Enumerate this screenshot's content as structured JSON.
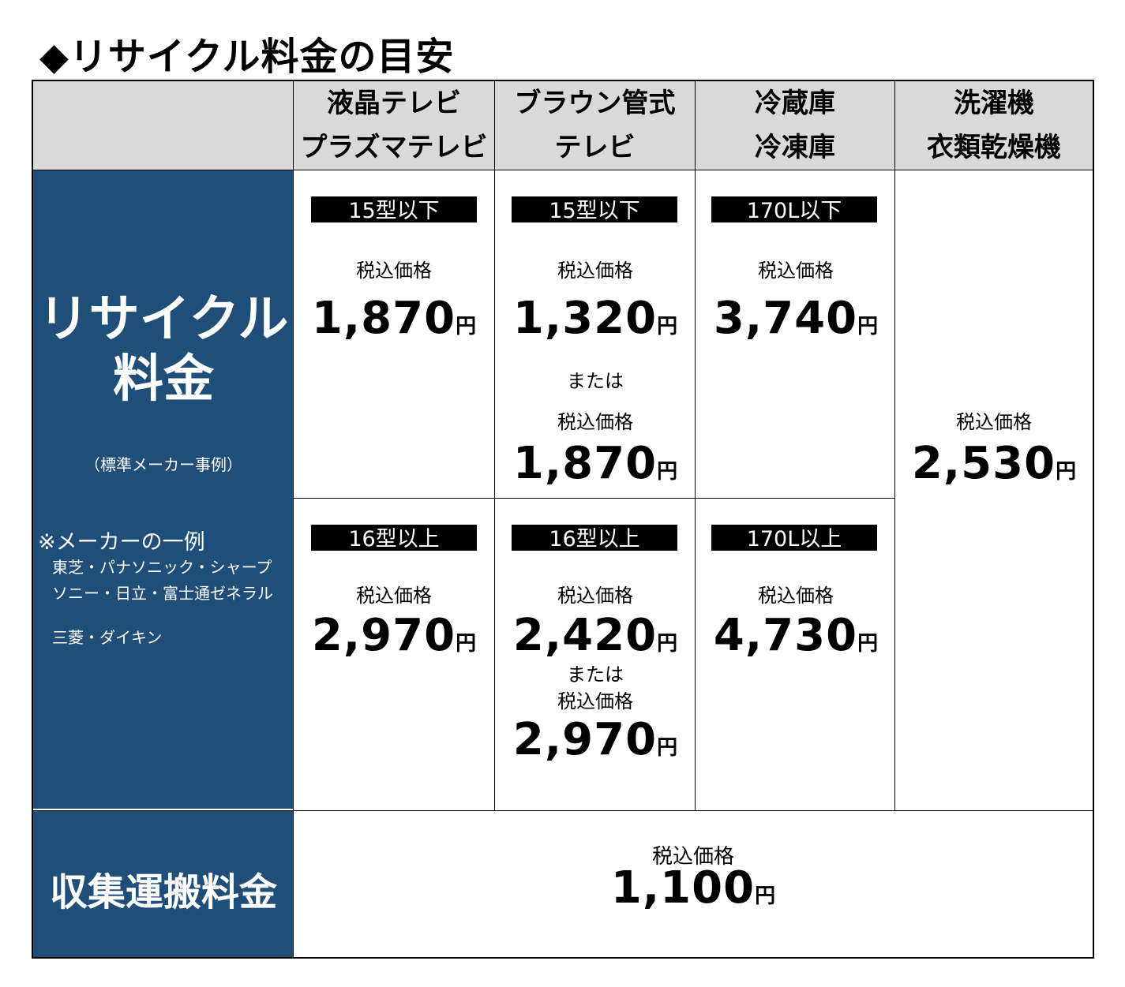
{
  "page_title": "◆リサイクル料金の目安",
  "header": {
    "col1": [
      "液晶テレビ",
      "プラズマテレビ"
    ],
    "col2": [
      "ブラウン管式",
      "テレビ"
    ],
    "col3": [
      "冷蔵庫",
      "冷凍庫"
    ],
    "col4": [
      "洗濯機",
      "衣類乾燥機"
    ]
  },
  "left": {
    "recycle_title": [
      "リサイクル",
      "料金"
    ],
    "recycle_sub": "（標準メーカー事例）",
    "maker_heading": "※メーカーの一例",
    "makers": [
      "東芝・パナソニック・シャープ",
      "ソニー・日立・富士通ゼネラル",
      "三菱・ダイキン"
    ],
    "collection_title": "収集運搬料金"
  },
  "labels": {
    "tax_incl": "税込価格",
    "or": "または",
    "yen": "円"
  },
  "cells": {
    "lcd_small": {
      "badge": "15型以下",
      "price": "1,870"
    },
    "crt_small": {
      "badge": "15型以下",
      "price1": "1,320",
      "price2": "1,870"
    },
    "fridge_small": {
      "badge": "170L以下",
      "price": "3,740"
    },
    "washer": {
      "price": "2,530"
    },
    "lcd_large": {
      "badge": "16型以上",
      "price": "2,970"
    },
    "crt_large": {
      "badge": "16型以上",
      "price1": "2,420",
      "price2": "2,970"
    },
    "fridge_large": {
      "badge": "170L以上",
      "price": "4,730"
    },
    "collection": {
      "price": "1,100"
    }
  },
  "colors": {
    "header_bg": "#d9d9d9",
    "left_bg": "#1f4e79",
    "badge_bg": "#000000"
  }
}
